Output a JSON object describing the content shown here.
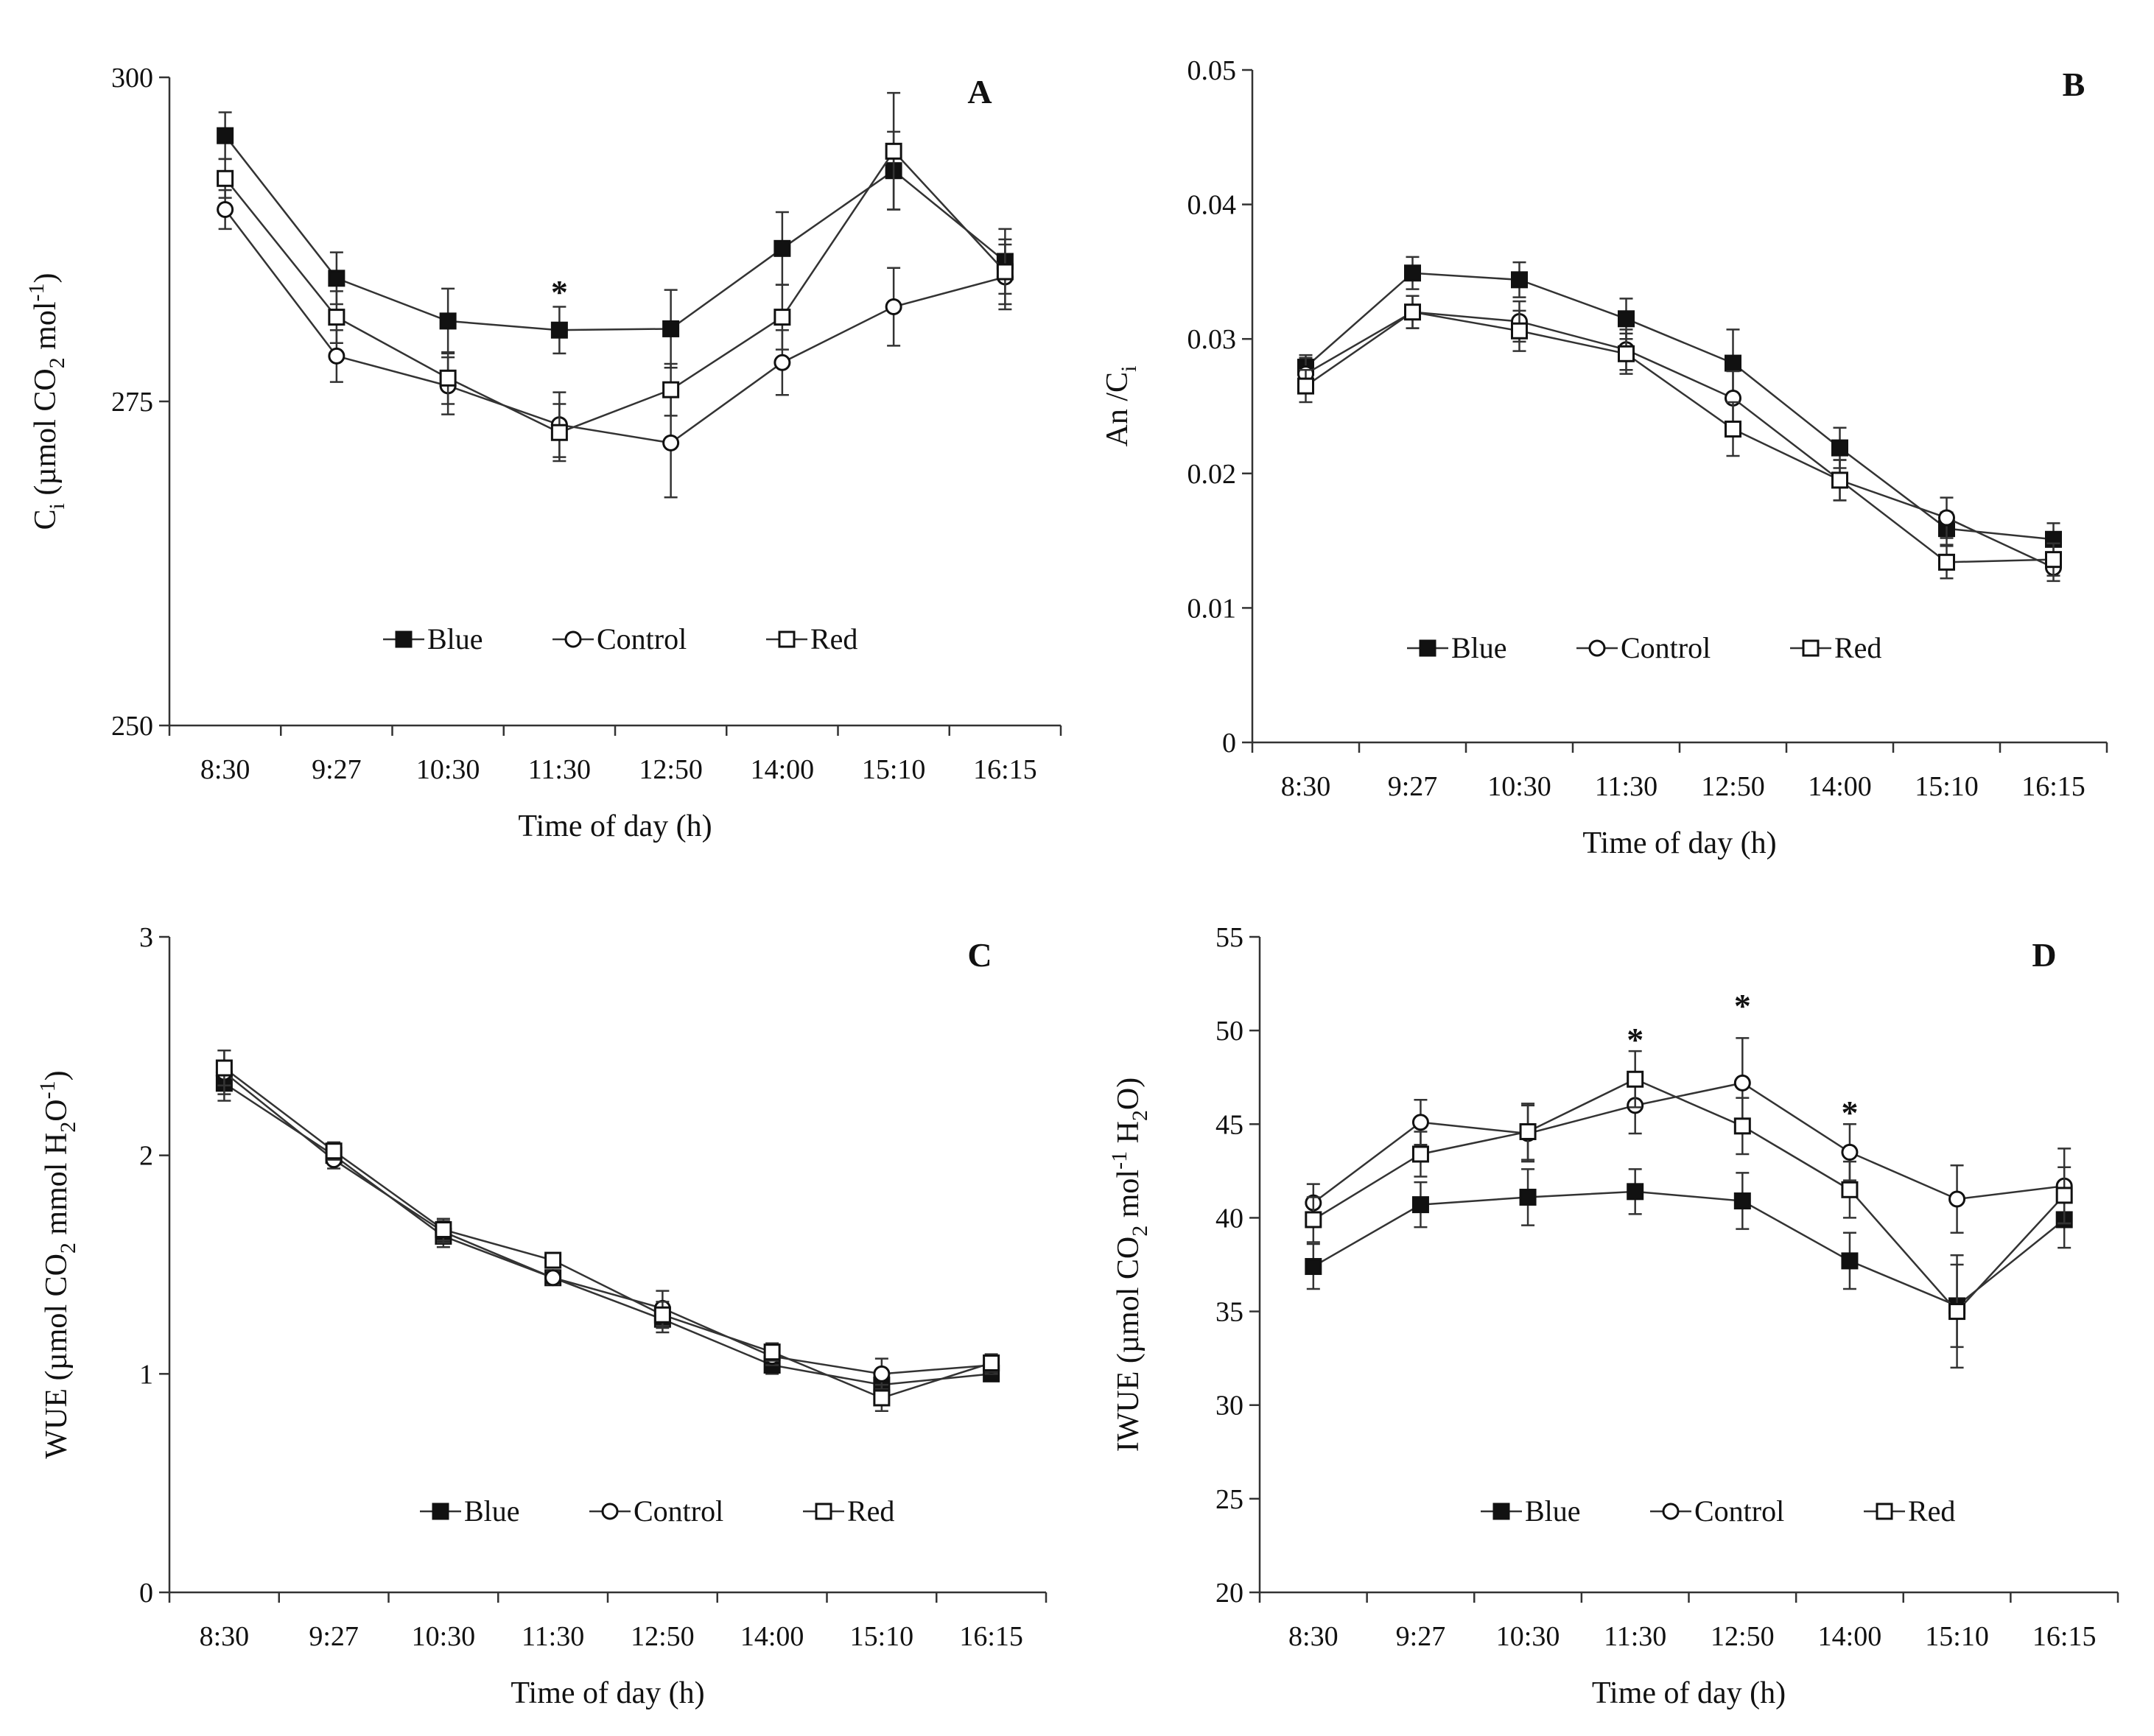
{
  "figure": {
    "background": "#ffffff",
    "line_color": "#333333",
    "marker_edge": "#111111",
    "marker_fill_filled": "#111111",
    "marker_fill_open": "#ffffff",
    "series_styles": {
      "Blue": {
        "marker": "square",
        "fill": "filled"
      },
      "Control": {
        "marker": "circle",
        "fill": "open"
      },
      "Red": {
        "marker": "square",
        "fill": "open"
      }
    }
  },
  "chart_data": [
    {
      "panel": "A",
      "type": "line",
      "title": "",
      "xlabel": "Time of day (h)",
      "ylabel": {
        "main": "C",
        "sub": "i",
        "rest": " (µmol CO",
        "sub2": "2",
        "rest2": " mol",
        "sup": "-1",
        "end": ")"
      },
      "ylim": [
        250,
        300
      ],
      "yticks": [
        250,
        275,
        300
      ],
      "ytick_labels": [
        "250",
        "275",
        "300"
      ],
      "categories": [
        "8:30",
        "9:27",
        "10:30",
        "11:30",
        "12:50",
        "14:00",
        "15:10",
        "16:15"
      ],
      "legend": [
        "Blue",
        "Control",
        "Red"
      ],
      "series": [
        {
          "name": "Blue",
          "values": [
            295.5,
            284.5,
            281.2,
            280.5,
            280.6,
            286.8,
            292.8,
            285.8
          ],
          "errors": [
            1.8,
            2.0,
            2.5,
            1.8,
            3.0,
            2.8,
            3.0,
            2.5
          ]
        },
        {
          "name": "Control",
          "values": [
            289.8,
            278.5,
            276.2,
            273.2,
            271.8,
            278.0,
            282.3,
            284.6
          ],
          "errors": [
            1.5,
            2.0,
            2.2,
            2.5,
            4.2,
            2.5,
            3.0,
            2.5
          ]
        },
        {
          "name": "Red",
          "values": [
            292.2,
            281.5,
            276.8,
            272.6,
            275.9,
            281.5,
            294.3,
            285.0
          ],
          "errors": [
            1.5,
            2.0,
            2.0,
            2.2,
            2.0,
            2.5,
            4.5,
            2.5
          ]
        }
      ],
      "annotations": [
        {
          "text": "*",
          "category": "11:30",
          "value": 283.7
        }
      ]
    },
    {
      "panel": "B",
      "type": "line",
      "title": "",
      "xlabel": "Time of day (h)",
      "ylabel": {
        "main": "An /C",
        "sub": "i"
      },
      "ylim": [
        0,
        0.05
      ],
      "yticks": [
        0,
        0.01,
        0.02,
        0.03,
        0.04,
        0.05
      ],
      "ytick_labels": [
        "0",
        "0.01",
        "0.02",
        "0.03",
        "0.04",
        "0.05"
      ],
      "categories": [
        "8:30",
        "9:27",
        "10:30",
        "11:30",
        "12:50",
        "14:00",
        "15:10",
        "16:15"
      ],
      "legend": [
        "Blue",
        "Control",
        "Red"
      ],
      "series": [
        {
          "name": "Blue",
          "values": [
            0.0279,
            0.0349,
            0.0344,
            0.0315,
            0.0282,
            0.0219,
            0.0159,
            0.0151
          ],
          "errors": [
            0.0009,
            0.0012,
            0.0013,
            0.0015,
            0.0025,
            0.0015,
            0.0012,
            0.0012
          ]
        },
        {
          "name": "Control",
          "values": [
            0.0274,
            0.032,
            0.0313,
            0.0292,
            0.0256,
            0.0195,
            0.0167,
            0.013
          ],
          "errors": [
            0.0012,
            0.0012,
            0.0015,
            0.0015,
            0.002,
            0.0015,
            0.0015,
            0.001
          ]
        },
        {
          "name": "Red",
          "values": [
            0.0265,
            0.032,
            0.0306,
            0.0289,
            0.0233,
            0.0195,
            0.0134,
            0.0136
          ],
          "errors": [
            0.0012,
            0.0012,
            0.0015,
            0.0015,
            0.002,
            0.0015,
            0.0012,
            0.0012
          ]
        }
      ],
      "annotations": []
    },
    {
      "panel": "C",
      "type": "line",
      "title": "",
      "xlabel": "Time of day (h)",
      "ylabel": {
        "main": "WUE (µmol CO",
        "sub": "2",
        "rest": " mmol H",
        "sub2": "2",
        "rest2": "O",
        "sup": "-1",
        "end": ")"
      },
      "ylim": [
        0,
        3
      ],
      "yticks": [
        0,
        1,
        2,
        3
      ],
      "ytick_labels": [
        "0",
        "1",
        "2",
        "3"
      ],
      "categories": [
        "8:30",
        "9:27",
        "10:30",
        "11:30",
        "12:50",
        "14:00",
        "15:10",
        "16:15"
      ],
      "legend": [
        "Blue",
        "Control",
        "Red"
      ],
      "series": [
        {
          "name": "Blue",
          "values": [
            2.33,
            2.0,
            1.63,
            1.44,
            1.25,
            1.04,
            0.95,
            1.0
          ],
          "errors": [
            0.08,
            0.04,
            0.05,
            0.03,
            0.06,
            0.04,
            0.06,
            0.03
          ]
        },
        {
          "name": "Control",
          "values": [
            2.38,
            1.98,
            1.65,
            1.44,
            1.3,
            1.08,
            1.0,
            1.04
          ],
          "errors": [
            0.1,
            0.04,
            0.05,
            0.03,
            0.08,
            0.04,
            0.07,
            0.04
          ]
        },
        {
          "name": "Red",
          "values": [
            2.4,
            2.02,
            1.66,
            1.52,
            1.27,
            1.1,
            0.89,
            1.05
          ],
          "errors": [
            0.08,
            0.04,
            0.05,
            0.03,
            0.06,
            0.04,
            0.06,
            0.04
          ]
        }
      ],
      "annotations": []
    },
    {
      "panel": "D",
      "type": "line",
      "title": "",
      "xlabel": "Time of day (h)",
      "ylabel": {
        "main": "IWUE (µmol CO",
        "sub": "2",
        "rest": " mol",
        "sup": "-1",
        "end": " H",
        "sub3": "2",
        "end2": "O)"
      },
      "ylim": [
        20,
        55
      ],
      "yticks": [
        20,
        25,
        30,
        35,
        40,
        45,
        50,
        55
      ],
      "ytick_labels": [
        "20",
        "25",
        "30",
        "35",
        "40",
        "45",
        "50",
        "55"
      ],
      "categories": [
        "8:30",
        "9:27",
        "10:30",
        "11:30",
        "12:50",
        "14:00",
        "15:10",
        "16:15"
      ],
      "legend": [
        "Blue",
        "Control",
        "Red"
      ],
      "series": [
        {
          "name": "Blue",
          "values": [
            37.4,
            40.7,
            41.1,
            41.4,
            40.9,
            37.7,
            35.3,
            39.9
          ],
          "errors": [
            1.2,
            1.2,
            1.5,
            1.2,
            1.5,
            1.5,
            2.2,
            1.5
          ]
        },
        {
          "name": "Control",
          "values": [
            40.8,
            45.1,
            44.5,
            46.0,
            47.2,
            43.5,
            41.0,
            41.7
          ],
          "errors": [
            1.0,
            1.2,
            1.5,
            1.5,
            2.4,
            1.5,
            1.8,
            2.0
          ]
        },
        {
          "name": "Red",
          "values": [
            39.9,
            43.4,
            44.6,
            47.4,
            44.9,
            41.5,
            35.0,
            41.2
          ],
          "errors": [
            1.2,
            1.2,
            1.5,
            1.5,
            1.5,
            1.5,
            3.0,
            1.5
          ]
        }
      ],
      "annotations": [
        {
          "text": "*",
          "category": "11:30",
          "value": 49.7
        },
        {
          "text": "*",
          "category": "12:50",
          "value": 51.5
        },
        {
          "text": "*",
          "category": "14:00",
          "value": 45.8
        }
      ]
    }
  ]
}
